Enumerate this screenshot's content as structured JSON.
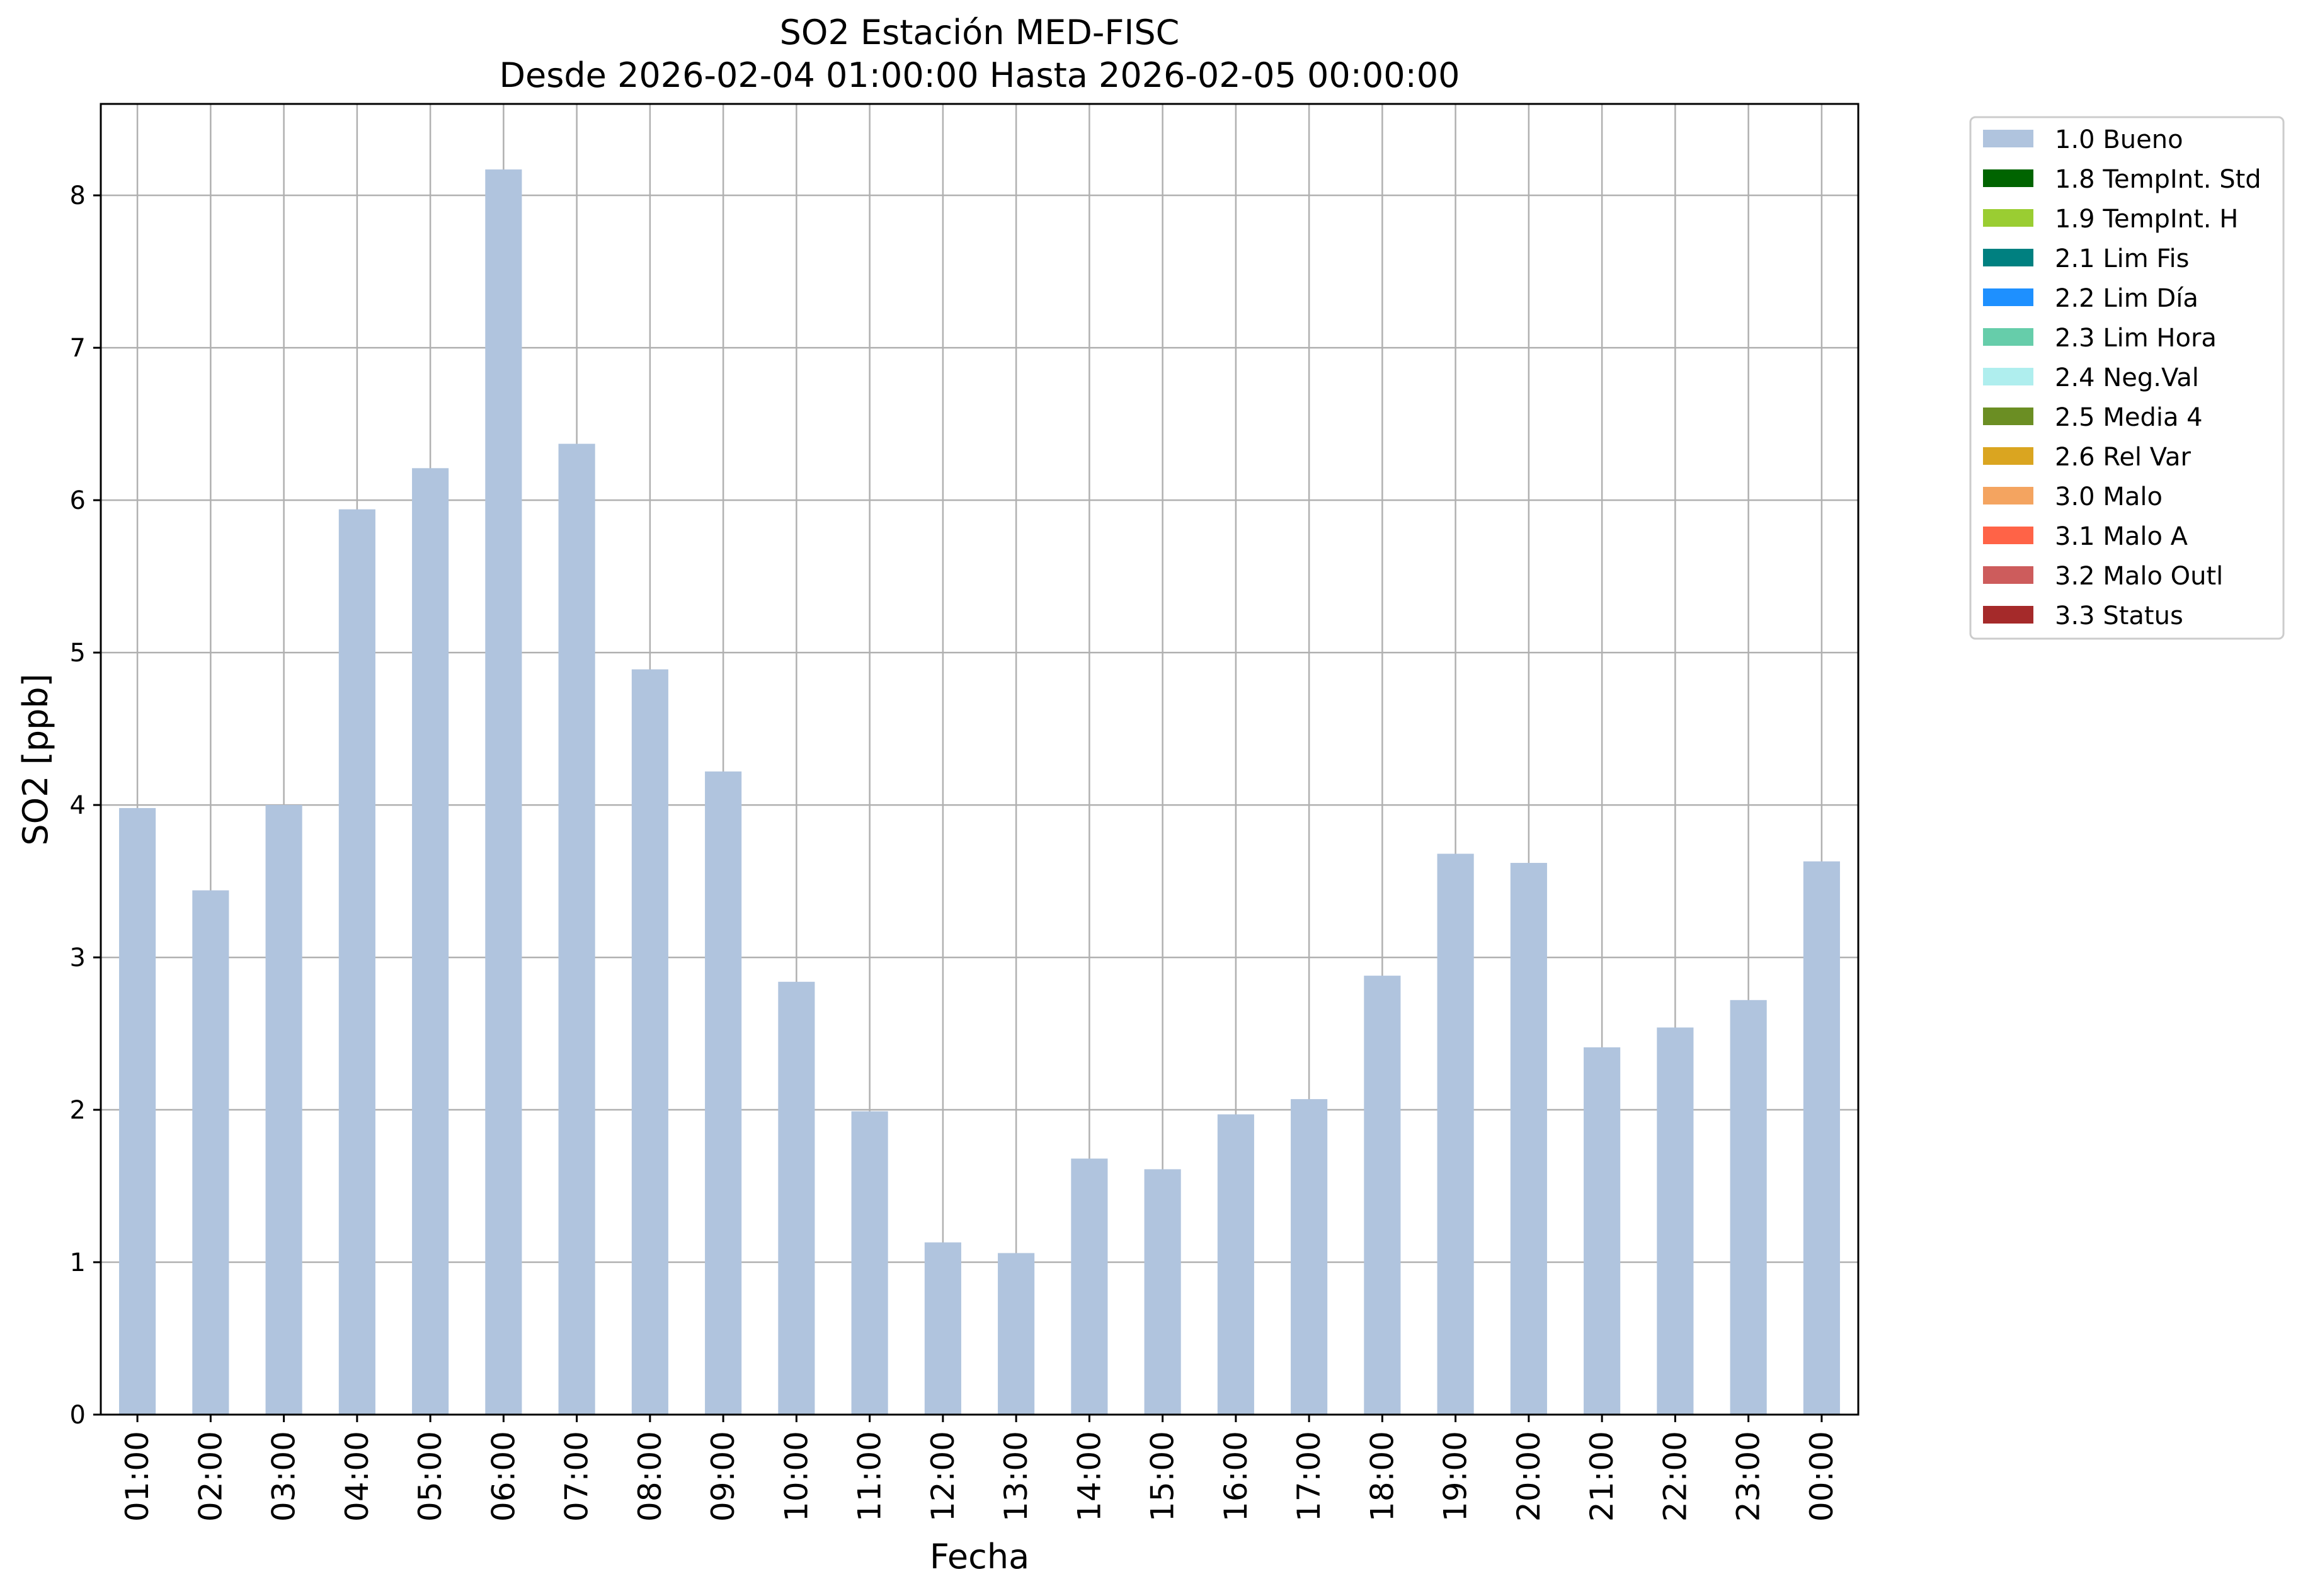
{
  "chart_data": {
    "type": "bar",
    "title": "SO2 Estación MED-FISC",
    "subtitle": "Desde 2026-02-04 01:00:00 Hasta 2026-02-05 00:00:00",
    "xlabel": "Fecha",
    "ylabel": "SO2 [ppb]",
    "ylim": [
      0,
      8.6
    ],
    "yticks": [
      "0",
      "1",
      "2",
      "3",
      "4",
      "5",
      "6",
      "7",
      "8"
    ],
    "grid": true,
    "legend_position": "outside-right-top",
    "categories": [
      "01:00",
      "02:00",
      "03:00",
      "04:00",
      "05:00",
      "06:00",
      "07:00",
      "08:00",
      "09:00",
      "10:00",
      "11:00",
      "12:00",
      "13:00",
      "14:00",
      "15:00",
      "16:00",
      "17:00",
      "18:00",
      "19:00",
      "20:00",
      "21:00",
      "22:00",
      "23:00",
      "00:00"
    ],
    "series": [
      {
        "name": "1.0 Bueno",
        "color": "#b0c4de",
        "values": [
          3.98,
          3.44,
          4.0,
          5.94,
          6.21,
          8.17,
          6.37,
          4.89,
          4.22,
          2.84,
          1.99,
          1.13,
          1.06,
          1.68,
          1.61,
          1.97,
          2.07,
          2.88,
          3.68,
          3.62,
          2.41,
          2.54,
          2.72,
          3.63
        ]
      }
    ],
    "legend": [
      {
        "label": "1.0 Bueno",
        "color": "#b0c4de"
      },
      {
        "label": "1.8 TempInt. Std",
        "color": "#006400"
      },
      {
        "label": "1.9 TempInt. H",
        "color": "#9acd32"
      },
      {
        "label": "2.1 Lim Fis",
        "color": "#008080"
      },
      {
        "label": "2.2 Lim Día",
        "color": "#1e90ff"
      },
      {
        "label": "2.3 Lim Hora",
        "color": "#66cdaa"
      },
      {
        "label": "2.4 Neg.Val",
        "color": "#afeeee"
      },
      {
        "label": "2.5 Media 4",
        "color": "#6b8e23"
      },
      {
        "label": "2.6 Rel Var",
        "color": "#daa520"
      },
      {
        "label": "3.0 Malo",
        "color": "#f4a460"
      },
      {
        "label": "3.1 Malo A",
        "color": "#ff6347"
      },
      {
        "label": "3.2 Malo Outl",
        "color": "#cd5c5c"
      },
      {
        "label": "3.3 Status",
        "color": "#a52a2a"
      }
    ]
  }
}
